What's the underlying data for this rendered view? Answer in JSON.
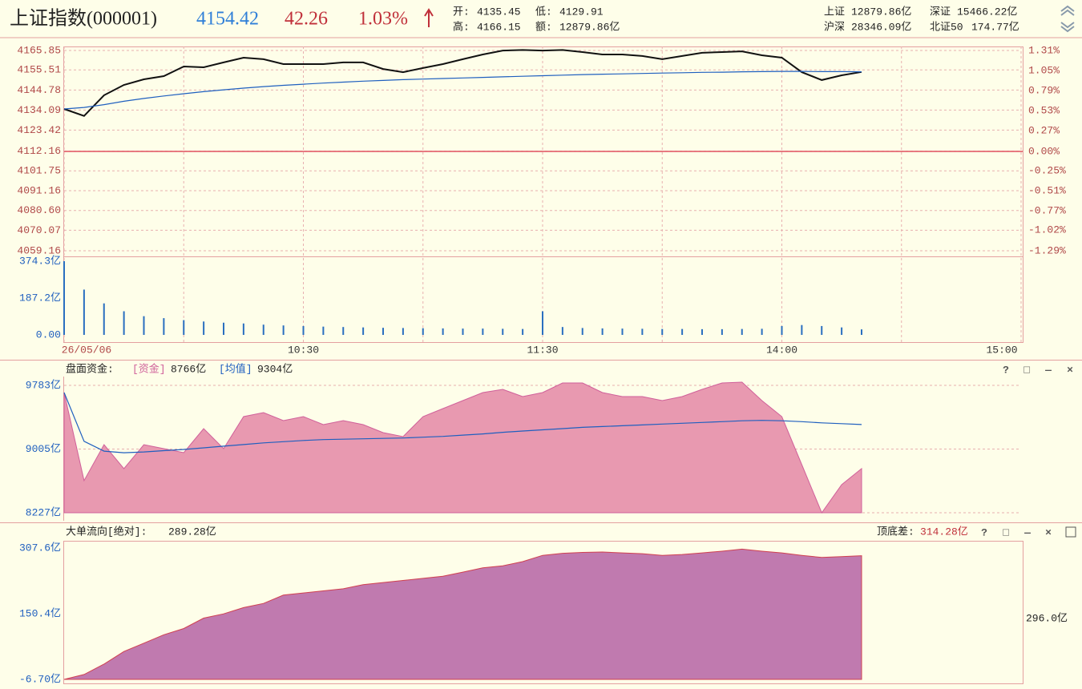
{
  "header": {
    "name": "上证指数(000001)",
    "price": "4154.42",
    "change": "42.26",
    "percent": "1.03%",
    "stats": [
      {
        "label": "开:",
        "value": "4135.45"
      },
      {
        "label": "低:",
        "value": "4129.91"
      },
      {
        "label": "高:",
        "value": "4166.15"
      },
      {
        "label": "额:",
        "value": "12879.86亿"
      }
    ],
    "markets": [
      {
        "label": "上证",
        "value": "12879.86亿"
      },
      {
        "label": "深证",
        "value": "15466.22亿"
      },
      {
        "label": "沪深",
        "value": "28346.09亿"
      },
      {
        "label": "北证50",
        "value": "174.77亿"
      }
    ]
  },
  "controls": [
    "?",
    "□",
    "—",
    "×"
  ],
  "chart_data": [
    {
      "type": "line",
      "grid": true,
      "x": [
        0,
        5,
        10,
        15,
        20,
        25,
        30,
        35,
        40,
        45,
        50,
        55,
        60,
        65,
        70,
        75,
        80,
        85,
        90,
        95,
        100,
        105,
        110,
        115,
        120,
        125,
        130,
        135,
        140,
        145,
        150,
        155,
        160,
        165,
        170,
        175,
        180,
        185,
        190,
        195,
        200
      ],
      "xlim": [
        0,
        240
      ],
      "xticks": [
        {
          "value": 0,
          "label": "26/05/06"
        },
        {
          "value": 30,
          "label": null
        },
        {
          "value": 60,
          "label": "10:30"
        },
        {
          "value": 90,
          "label": null
        },
        {
          "value": 120,
          "label": "11:30"
        },
        {
          "value": 150,
          "label": null
        },
        {
          "value": 180,
          "label": "14:00"
        },
        {
          "value": 210,
          "label": null
        },
        {
          "value": 240,
          "label": "15:00"
        }
      ],
      "ylim": [
        4059.16,
        4165.85
      ],
      "yticks": [
        4165.85,
        4155.51,
        4144.78,
        4134.09,
        4123.42,
        4112.16,
        4101.75,
        4091.16,
        {
          "value": 4080.6,
          "label": "4080.60"
        },
        4070.07,
        4059.16
      ],
      "y2lim": [
        -1.29,
        1.31
      ],
      "y2ticks": [
        {
          "value": 1.31,
          "label": "1.31%"
        },
        {
          "value": 1.05,
          "label": "1.05%"
        },
        {
          "value": 0.79,
          "label": "0.79%"
        },
        {
          "value": 0.53,
          "label": "0.53%"
        },
        {
          "value": 0.27,
          "label": "0.27%"
        },
        {
          "value": 0,
          "label": "0.00%"
        },
        {
          "value": -0.25,
          "label": "-0.25%"
        },
        {
          "value": -0.51,
          "label": "-0.51%"
        },
        {
          "value": -0.77,
          "label": "-0.77%"
        },
        {
          "value": -1.02,
          "label": "-1.02%"
        },
        {
          "value": -1.29,
          "label": "-1.29%"
        }
      ],
      "series": [
        {
          "color": "#111111",
          "values": [
            4134.7,
            4131.0,
            4142.0,
            4147.5,
            4150.5,
            4152.2,
            4157.3,
            4156.9,
            4159.5,
            4162.0,
            4161.2,
            4158.6,
            4158.6,
            4158.6,
            4159.5,
            4159.5,
            4156.0,
            4154.3,
            4156.5,
            4158.6,
            4161.2,
            4163.7,
            4165.8,
            4166.1,
            4165.8,
            4166.1,
            4165.0,
            4163.7,
            4163.7,
            4162.9,
            4161.2,
            4162.9,
            4164.6,
            4165.0,
            4165.4,
            4163.3,
            4162.0,
            4154.3,
            4150.1,
            4152.6,
            4154.4
          ]
        },
        {
          "color": "#1f5fbf",
          "values": [
            4134.7,
            4135.5,
            4137.0,
            4138.8,
            4140.3,
            4141.6,
            4142.8,
            4143.9,
            4144.9,
            4145.8,
            4146.6,
            4147.3,
            4147.9,
            4148.5,
            4149.0,
            4149.5,
            4149.9,
            4150.3,
            4150.6,
            4150.9,
            4151.2,
            4151.5,
            4151.8,
            4152.1,
            4152.4,
            4152.7,
            4153.0,
            4153.2,
            4153.4,
            4153.6,
            4153.8,
            4154.0,
            4154.2,
            4154.3,
            4154.5,
            4154.6,
            4154.7,
            4154.7,
            4154.6,
            4154.6,
            4154.5
          ]
        }
      ]
    },
    {
      "type": "bar",
      "color": "#2a6fc0",
      "x": [
        0,
        5,
        10,
        15,
        20,
        25,
        30,
        35,
        40,
        45,
        50,
        55,
        60,
        65,
        70,
        75,
        80,
        85,
        90,
        95,
        100,
        105,
        110,
        115,
        120,
        125,
        130,
        135,
        140,
        145,
        150,
        155,
        160,
        165,
        170,
        175,
        180,
        185,
        190,
        195,
        200
      ],
      "xlim": [
        0,
        240
      ],
      "ylim": [
        0,
        374.3
      ],
      "yticks": [
        {
          "value": 374.3,
          "label": "374.3亿"
        },
        {
          "value": 187.2,
          "label": "187.2亿"
        },
        {
          "value": 0,
          "label": "0.00"
        }
      ],
      "values": [
        374.3,
        230,
        160,
        120,
        95,
        85,
        75,
        68,
        62,
        58,
        52,
        48,
        45,
        42,
        40,
        38,
        36,
        35,
        34,
        33,
        32,
        32,
        31,
        30,
        120,
        40,
        35,
        33,
        32,
        31,
        30,
        30,
        29,
        29,
        30,
        31,
        45,
        50,
        45,
        38,
        28
      ]
    },
    {
      "type": "area",
      "title": "盘面资金:",
      "grid": true,
      "x": [
        0,
        5,
        10,
        15,
        20,
        25,
        30,
        35,
        40,
        45,
        50,
        55,
        60,
        65,
        70,
        75,
        80,
        85,
        90,
        95,
        100,
        105,
        110,
        115,
        120,
        125,
        130,
        135,
        140,
        145,
        150,
        155,
        160,
        165,
        170,
        175,
        180,
        185,
        190,
        195,
        200
      ],
      "xlim": [
        0,
        240
      ],
      "ylim": [
        8227,
        9783
      ],
      "yticks": [
        {
          "value": 9783,
          "label": "9783亿"
        },
        {
          "value": 9005,
          "label": "9005亿"
        },
        {
          "value": 8227,
          "label": "8227亿"
        }
      ],
      "series": [
        {
          "name": "[资金]",
          "current": "8766亿",
          "color": "#d0609a",
          "fill": "#e899b0",
          "values": [
            9695,
            8619,
            9059,
            8765,
            9059,
            9010,
            8961,
            9255,
            9010,
            9401,
            9450,
            9352,
            9401,
            9303,
            9352,
            9303,
            9206,
            9157,
            9401,
            9499,
            9597,
            9695,
            9734,
            9646,
            9695,
            9812,
            9812,
            9695,
            9646,
            9646,
            9597,
            9646,
            9734,
            9812,
            9822,
            9597,
            9401,
            8814,
            8227,
            8570,
            8766
          ]
        },
        {
          "name": "[均值]",
          "current": "9304亿",
          "color": "#1f5fbf",
          "values": [
            9695,
            9100,
            8980,
            8960,
            8970,
            8985,
            9000,
            9020,
            9040,
            9060,
            9080,
            9095,
            9110,
            9120,
            9125,
            9130,
            9135,
            9140,
            9150,
            9160,
            9175,
            9190,
            9210,
            9225,
            9240,
            9255,
            9270,
            9280,
            9290,
            9300,
            9310,
            9320,
            9330,
            9340,
            9350,
            9355,
            9350,
            9340,
            9325,
            9315,
            9304
          ]
        }
      ]
    },
    {
      "type": "area",
      "title": "大单流向[绝对]:",
      "current": "289.28亿",
      "range_label": "顶底差:",
      "range_value": "314.28亿",
      "right_label": "296.0亿",
      "x": [
        0,
        5,
        10,
        15,
        20,
        25,
        30,
        35,
        40,
        45,
        50,
        55,
        60,
        65,
        70,
        75,
        80,
        85,
        90,
        95,
        100,
        105,
        110,
        115,
        120,
        125,
        130,
        135,
        140,
        145,
        150,
        155,
        160,
        165,
        170,
        175,
        180,
        185,
        190,
        195,
        200
      ],
      "xlim": [
        0,
        240
      ],
      "ylim": [
        -6.7,
        307.6
      ],
      "yticks": [
        {
          "value": 307.6,
          "label": "307.6亿"
        },
        {
          "value": 150.4,
          "label": "150.4亿"
        },
        {
          "value": -6.7,
          "label": "-6.70亿"
        }
      ],
      "series": [
        {
          "color": "#d04050",
          "fill": "#c07aaf",
          "values": [
            -6.7,
            5,
            30,
            60,
            80,
            100,
            115,
            140,
            150,
            165,
            175,
            195,
            200,
            205,
            210,
            220,
            225,
            230,
            235,
            240,
            250,
            260,
            265,
            275,
            290,
            295,
            297,
            298,
            296,
            294,
            290,
            292,
            296,
            300,
            305,
            300,
            296,
            290,
            285,
            287,
            289.28
          ]
        }
      ]
    }
  ]
}
